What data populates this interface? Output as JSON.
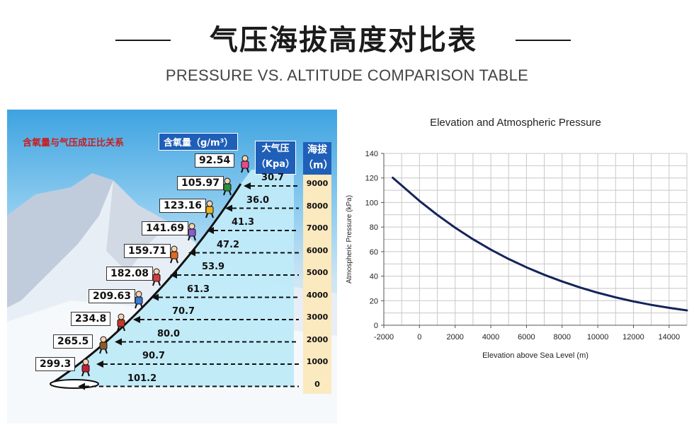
{
  "header": {
    "title": "气压海拔高度对比表",
    "subtitle": "PRESSURE VS. ALTITUDE COMPARISON TABLE"
  },
  "infographic": {
    "heading": "含氧量与气压成正比关系",
    "oxygen_header": "含氧量（g/m³）",
    "pressure_header_line1": "大气压",
    "pressure_header_line2": "（Kpa）",
    "altitude_header_line1": "海拔",
    "altitude_header_line2": "（m）",
    "rows": [
      {
        "altitude": "9000",
        "pressure": "30.7",
        "oxygen": "92.54"
      },
      {
        "altitude": "8000",
        "pressure": "36.0",
        "oxygen": "105.97"
      },
      {
        "altitude": "7000",
        "pressure": "41.3",
        "oxygen": "123.16"
      },
      {
        "altitude": "6000",
        "pressure": "47.2",
        "oxygen": "141.69"
      },
      {
        "altitude": "5000",
        "pressure": "53.9",
        "oxygen": "159.71"
      },
      {
        "altitude": "4000",
        "pressure": "61.3",
        "oxygen": "182.08"
      },
      {
        "altitude": "3000",
        "pressure": "70.7",
        "oxygen": "209.63"
      },
      {
        "altitude": "2000",
        "pressure": "80.0",
        "oxygen": "234.8"
      },
      {
        "altitude": "1000",
        "pressure": "90.7",
        "oxygen": "265.5"
      },
      {
        "altitude": "0",
        "pressure": "101.2",
        "oxygen": "299.3"
      }
    ],
    "colors": {
      "heading": "#c81e1e",
      "header_bg": "#1f5fb8",
      "altitude_col": "#fbe9bf"
    }
  },
  "chart_data": {
    "type": "line",
    "title": "Elevation and Atmospheric Pressure",
    "xlabel": "Elevation above Sea Level (m)",
    "ylabel": "Atmospheric Pressure (kPa)",
    "xlim": [
      -2000,
      15000
    ],
    "ylim": [
      0,
      140
    ],
    "xticks": [
      "-2000",
      "0",
      "2000",
      "4000",
      "6000",
      "8000",
      "10000",
      "12000",
      "14000"
    ],
    "yticks": [
      "0",
      "20",
      "40",
      "60",
      "80",
      "100",
      "120",
      "140"
    ],
    "grid": true,
    "series": [
      {
        "color": "#14235a",
        "x": [
          -1500,
          -1000,
          0,
          1000,
          2000,
          3000,
          4000,
          5000,
          6000,
          7000,
          8000,
          9000,
          10000,
          11000,
          12000,
          13000,
          14000,
          15000
        ],
        "y": [
          120.2,
          113.9,
          101.3,
          89.9,
          79.5,
          70.1,
          61.6,
          54.0,
          47.2,
          41.1,
          35.7,
          30.8,
          26.5,
          22.7,
          19.4,
          16.6,
          14.2,
          12.1
        ]
      }
    ]
  }
}
